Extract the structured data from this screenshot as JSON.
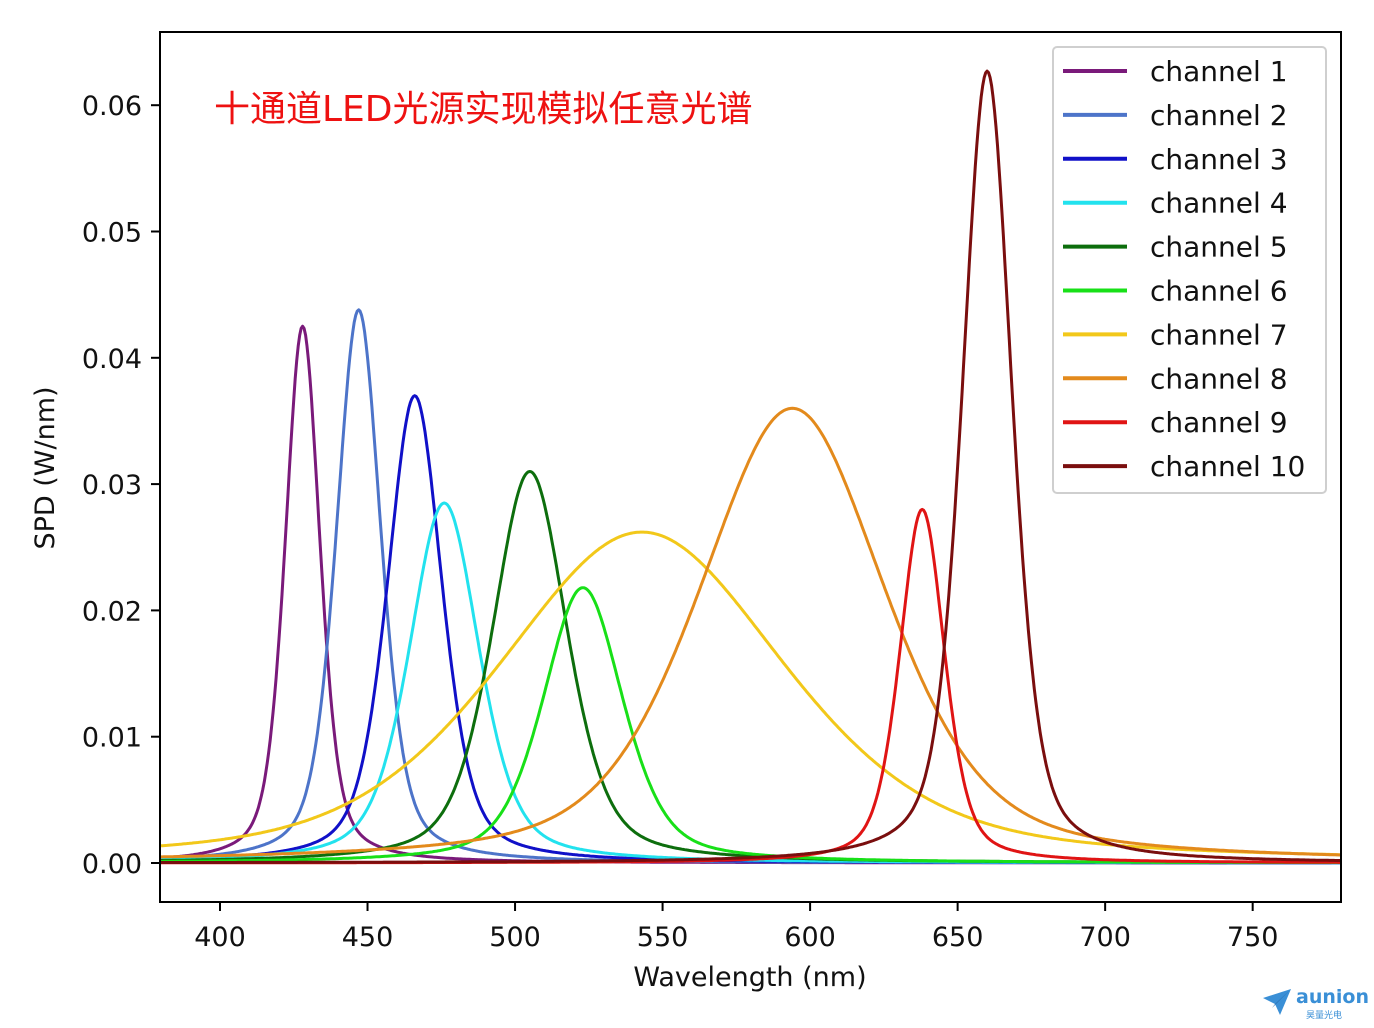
{
  "chart_data": {
    "type": "line",
    "title": "",
    "annotation": "十通道LED光源实现模拟任意光谱",
    "xlabel": "Wavelength (nm)",
    "ylabel": "SPD (W/nm)",
    "xlim": [
      380,
      780
    ],
    "ylim": [
      -0.003,
      0.066
    ],
    "xticks": [
      400,
      450,
      500,
      550,
      600,
      650,
      700,
      750
    ],
    "xtick_labels": [
      "400",
      "450",
      "500",
      "550",
      "600",
      "650",
      "700",
      "750"
    ],
    "yticks": [
      0.0,
      0.01,
      0.02,
      0.03,
      0.04,
      0.05,
      0.06
    ],
    "ytick_labels": [
      "0.00",
      "0.01",
      "0.02",
      "0.03",
      "0.04",
      "0.05",
      "0.06"
    ],
    "grid": false,
    "legend_position": "top-right",
    "series": [
      {
        "name": "channel 1",
        "color": "#7a1a7a",
        "peak_nm": 428,
        "peak": 0.0425,
        "fwhm": 14
      },
      {
        "name": "channel 2",
        "color": "#4d74c9",
        "peak_nm": 447,
        "peak": 0.0438,
        "fwhm": 18
      },
      {
        "name": "channel 3",
        "color": "#1010c8",
        "peak_nm": 466,
        "peak": 0.037,
        "fwhm": 22
      },
      {
        "name": "channel 4",
        "color": "#22e2ee",
        "peak_nm": 476,
        "peak": 0.0285,
        "fwhm": 28
      },
      {
        "name": "channel 5",
        "color": "#0d6e0d",
        "peak_nm": 505,
        "peak": 0.031,
        "fwhm": 30
      },
      {
        "name": "channel 6",
        "color": "#18e018",
        "peak_nm": 523,
        "peak": 0.0218,
        "fwhm": 32
      },
      {
        "name": "channel 7",
        "color": "#f2c81a",
        "peak_nm": 543,
        "peak": 0.0262,
        "fwhm": 115
      },
      {
        "name": "channel 8",
        "color": "#e38a1c",
        "peak_nm": 594,
        "peak": 0.036,
        "fwhm": 75
      },
      {
        "name": "channel 9",
        "color": "#e01414",
        "peak_nm": 638,
        "peak": 0.028,
        "fwhm": 18
      },
      {
        "name": "channel 10",
        "color": "#7a0e0e",
        "peak_nm": 660,
        "peak": 0.0627,
        "fwhm": 20
      }
    ]
  },
  "watermark": {
    "name": "aunion",
    "sub": "昊量光电",
    "color": "#3a8fd6"
  }
}
